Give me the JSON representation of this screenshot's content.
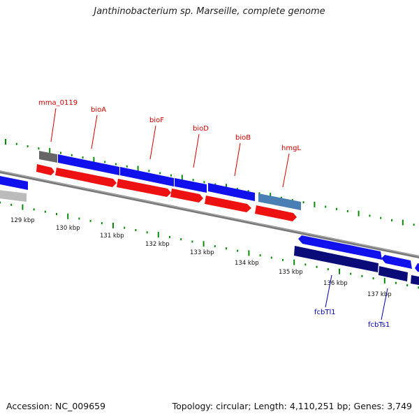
{
  "title": "Janthinobacterium sp. Marseille, complete genome",
  "footer": {
    "accession": "Accession: NC_009659",
    "topology": "Topology: circular; Length: 4,110,251 bp; Genes: 3,749"
  },
  "colors": {
    "forward_cds": "#1111ee",
    "forward_gene": "#ee1111",
    "reverse_cds": "#0a0a78",
    "dark_gene": "#555555",
    "light_gene": "#bbbbbb",
    "steel_gene": "#4a7fb5",
    "backbone": "#777777",
    "tick": "#0a8a0a",
    "forward_label": "#cc0000",
    "reverse_label": "#0000aa"
  },
  "scale": {
    "tick_labels": [
      "129 kbp",
      "130 kbp",
      "131 kbp",
      "132 kbp",
      "133 kbp",
      "134 kbp",
      "135 kbp",
      "136 kbp",
      "137 kbp"
    ]
  },
  "forward_labels": [
    {
      "name": "mma_0119"
    },
    {
      "name": "bioA"
    },
    {
      "name": "bioF"
    },
    {
      "name": "bioD"
    },
    {
      "name": "bioB"
    },
    {
      "name": "hmgL"
    }
  ],
  "reverse_labels": [
    {
      "name": "fcbTl1"
    },
    {
      "name": "fcbTs1"
    }
  ]
}
